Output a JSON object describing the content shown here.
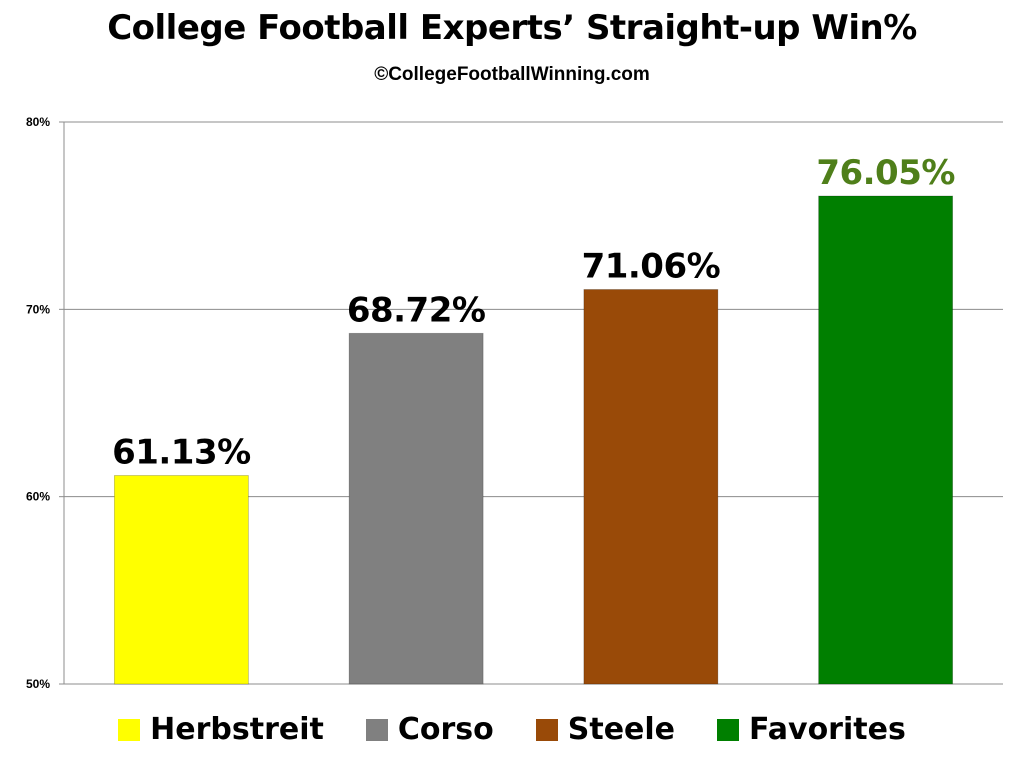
{
  "chart_data": {
    "type": "bar",
    "title": "College Football Experts’ Straight-up Win%",
    "subtitle": "©CollegeFootballWinning.com",
    "categories": [
      "Herbstreit",
      "Corso",
      "Steele",
      "Favorites"
    ],
    "values": [
      61.13,
      68.72,
      71.06,
      76.05
    ],
    "value_labels": [
      "61.13%",
      "68.72%",
      "71.06%",
      "76.05%"
    ],
    "colors": [
      "#ffff00",
      "#808080",
      "#994a08",
      "#007f00"
    ],
    "label_colors": [
      "#000000",
      "#000000",
      "#000000",
      "#4f7f1a"
    ],
    "ylim": [
      50,
      80
    ],
    "yticks": [
      50,
      60,
      70,
      80
    ],
    "ytick_labels": [
      "50%",
      "60%",
      "70%",
      "80%"
    ],
    "xlabel": "",
    "ylabel": "",
    "grid": true,
    "legend_position": "bottom"
  }
}
